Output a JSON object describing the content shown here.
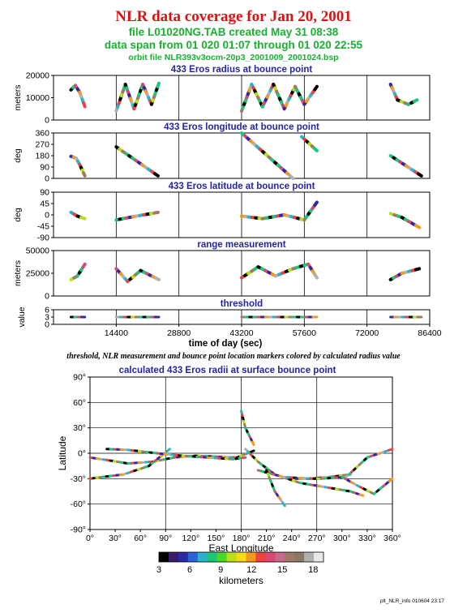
{
  "header": {
    "title": "NLR data coverage for Jan 20, 2001",
    "file_line": "file L01020NG.TAB created May 31 08:38",
    "span_line": "data span from 01 020 01:07 through 01 020 22:55",
    "orbit_line": "orbit file NLR393v3ocm-20p3_2001009_2001024.bsp"
  },
  "caption": "threshold, NLR measurement and bounce point location markers colored by calculated radius value",
  "footer": "plt_NLR_info 010604 23:17",
  "chart_data": [
    {
      "type": "line",
      "title": "433 Eros radius at bounce point",
      "ylabel": "meters",
      "ylim": [
        0,
        20000
      ],
      "yticks": [
        0,
        10000,
        20000
      ],
      "xlim": [
        0,
        86400
      ],
      "xticks": [
        14400,
        28800,
        43200,
        57600,
        72000,
        86400
      ],
      "series": [
        {
          "x": [
            4000,
            5000,
            6000,
            7200
          ],
          "y": [
            13500,
            15500,
            12500,
            6000
          ]
        },
        {
          "x": [
            14400,
            16500,
            18500,
            20500,
            22500,
            24200
          ],
          "y": [
            4000,
            16000,
            5000,
            16000,
            7000,
            16500
          ]
        },
        {
          "x": [
            43200,
            45500,
            48000,
            50500,
            53000,
            55500,
            57600,
            60500
          ],
          "y": [
            4000,
            16000,
            6000,
            16000,
            5000,
            15000,
            7000,
            15000
          ]
        },
        {
          "x": [
            77400,
            79000,
            81500,
            83500
          ],
          "y": [
            16000,
            9000,
            7000,
            9000
          ]
        }
      ]
    },
    {
      "type": "line",
      "title": "433 Eros longitude at bounce point",
      "ylabel": "deg",
      "ylim": [
        0,
        360
      ],
      "yticks": [
        0,
        90,
        180,
        270,
        360
      ],
      "xlim": [
        0,
        86400
      ],
      "xticks": [
        14400,
        28800,
        43200,
        57600,
        72000,
        86400
      ],
      "series": [
        {
          "x": [
            4000,
            5200,
            6000,
            7200
          ],
          "y": [
            175,
            160,
            110,
            20
          ]
        },
        {
          "x": [
            14400,
            24000
          ],
          "y": [
            250,
            20
          ]
        },
        {
          "x": [
            43200,
            55000
          ],
          "y": [
            360,
            0
          ]
        },
        {
          "x": [
            57000,
            60500
          ],
          "y": [
            330,
            220
          ]
        },
        {
          "x": [
            77400,
            84500
          ],
          "y": [
            180,
            20
          ]
        }
      ]
    },
    {
      "type": "line",
      "title": "433 Eros latitude at bounce point",
      "ylabel": "deg",
      "ylim": [
        -90,
        90
      ],
      "yticks": [
        -90,
        -45,
        0,
        45,
        90
      ],
      "xlim": [
        0,
        86400
      ],
      "xticks": [
        14400,
        28800,
        43200,
        57600,
        72000,
        86400
      ],
      "series": [
        {
          "x": [
            4000,
            5500,
            7200
          ],
          "y": [
            10,
            -5,
            -15
          ]
        },
        {
          "x": [
            14400,
            19000,
            24000
          ],
          "y": [
            -20,
            -5,
            10
          ]
        },
        {
          "x": [
            43200,
            48000,
            53000,
            57600,
            60500
          ],
          "y": [
            -5,
            -15,
            0,
            -20,
            50
          ]
        },
        {
          "x": [
            77400,
            80000,
            84000
          ],
          "y": [
            5,
            -10,
            -50
          ]
        }
      ]
    },
    {
      "type": "line",
      "title": "range measurement",
      "ylabel": "meters",
      "ylim": [
        0,
        50000
      ],
      "yticks": [
        0,
        25000,
        50000
      ],
      "xlim": [
        0,
        86400
      ],
      "xticks": [
        14400,
        28800,
        43200,
        57600,
        72000,
        86400
      ],
      "series": [
        {
          "x": [
            4000,
            5500,
            7200
          ],
          "y": [
            18000,
            22000,
            35000
          ]
        },
        {
          "x": [
            14400,
            17000,
            20000,
            24200
          ],
          "y": [
            30000,
            16000,
            28000,
            18000
          ]
        },
        {
          "x": [
            43200,
            47000,
            51000,
            55000,
            58500,
            60500
          ],
          "y": [
            20000,
            32000,
            22000,
            30000,
            35000,
            20000
          ]
        },
        {
          "x": [
            77400,
            80000,
            84000
          ],
          "y": [
            18000,
            25000,
            30000
          ]
        }
      ]
    },
    {
      "type": "line",
      "title": "threshold",
      "ylabel": "value",
      "ylim": [
        0,
        6
      ],
      "yticks": [
        0,
        3,
        6
      ],
      "xlim": [
        0,
        86400
      ],
      "xticks": [
        14400,
        28800,
        43200,
        57600,
        72000,
        86400
      ],
      "xlabel": "time of day (sec)",
      "series": [
        {
          "x": [
            4000,
            7200
          ],
          "y": [
            3,
            3
          ]
        },
        {
          "x": [
            14400,
            24200
          ],
          "y": [
            3,
            3
          ]
        },
        {
          "x": [
            43200,
            60500
          ],
          "y": [
            3,
            3
          ]
        },
        {
          "x": [
            77400,
            84500
          ],
          "y": [
            3,
            3
          ]
        }
      ]
    },
    {
      "type": "scatter",
      "title": "calculated 433 Eros radii at surface bounce point",
      "xlabel": "East Longitude",
      "ylabel": "Latitude",
      "xlim": [
        0,
        360
      ],
      "ylim": [
        -90,
        90
      ],
      "xticks": [
        0,
        30,
        60,
        90,
        120,
        150,
        180,
        210,
        240,
        270,
        300,
        330,
        360
      ],
      "yticks": [
        -90,
        -60,
        -30,
        0,
        30,
        60,
        90
      ],
      "tick_suffix": "°",
      "series": [
        {
          "x": [
            0,
            20,
            45,
            75,
            100,
            125,
            150,
            175,
            195
          ],
          "y": [
            -5,
            -8,
            -12,
            -10,
            -5,
            -3,
            -4,
            -5,
            3
          ]
        },
        {
          "x": [
            0,
            15,
            40,
            70,
            95
          ],
          "y": [
            -30,
            -28,
            -25,
            -15,
            5
          ]
        },
        {
          "x": [
            20,
            45,
            80,
            110,
            140,
            170,
            185
          ],
          "y": [
            5,
            4,
            0,
            -3,
            -5,
            -7,
            -5
          ]
        },
        {
          "x": [
            185,
            200,
            220,
            250,
            280,
            310,
            325
          ],
          "y": [
            5,
            -10,
            -25,
            -35,
            -40,
            -45,
            -50
          ]
        },
        {
          "x": [
            200,
            230,
            260,
            285,
            310
          ],
          "y": [
            -20,
            -28,
            -30,
            -28,
            -25
          ]
        },
        {
          "x": [
            245,
            275,
            305,
            330,
            360
          ],
          "y": [
            -30,
            -30,
            -28,
            -5,
            5
          ]
        },
        {
          "x": [
            210,
            220,
            232
          ],
          "y": [
            -20,
            -45,
            -62
          ]
        },
        {
          "x": [
            300,
            318,
            338,
            360
          ],
          "y": [
            -28,
            -38,
            -48,
            -30
          ]
        },
        {
          "x": [
            180,
            185,
            190,
            195
          ],
          "y": [
            50,
            30,
            20,
            10
          ]
        }
      ]
    }
  ],
  "colorbar": {
    "label": "kilometers",
    "ticks": [
      3,
      6,
      9,
      12,
      15,
      18
    ],
    "range": [
      3,
      19
    ],
    "colors": [
      "#000000",
      "#3a1a6a",
      "#2a2aa8",
      "#2a64d8",
      "#28b4c8",
      "#18c878",
      "#48d828",
      "#b8e018",
      "#f8d818",
      "#f89818",
      "#f04040",
      "#d84870",
      "#c86a8a",
      "#a07868",
      "#887868",
      "#b0b0b0",
      "#e8e8e8"
    ]
  }
}
